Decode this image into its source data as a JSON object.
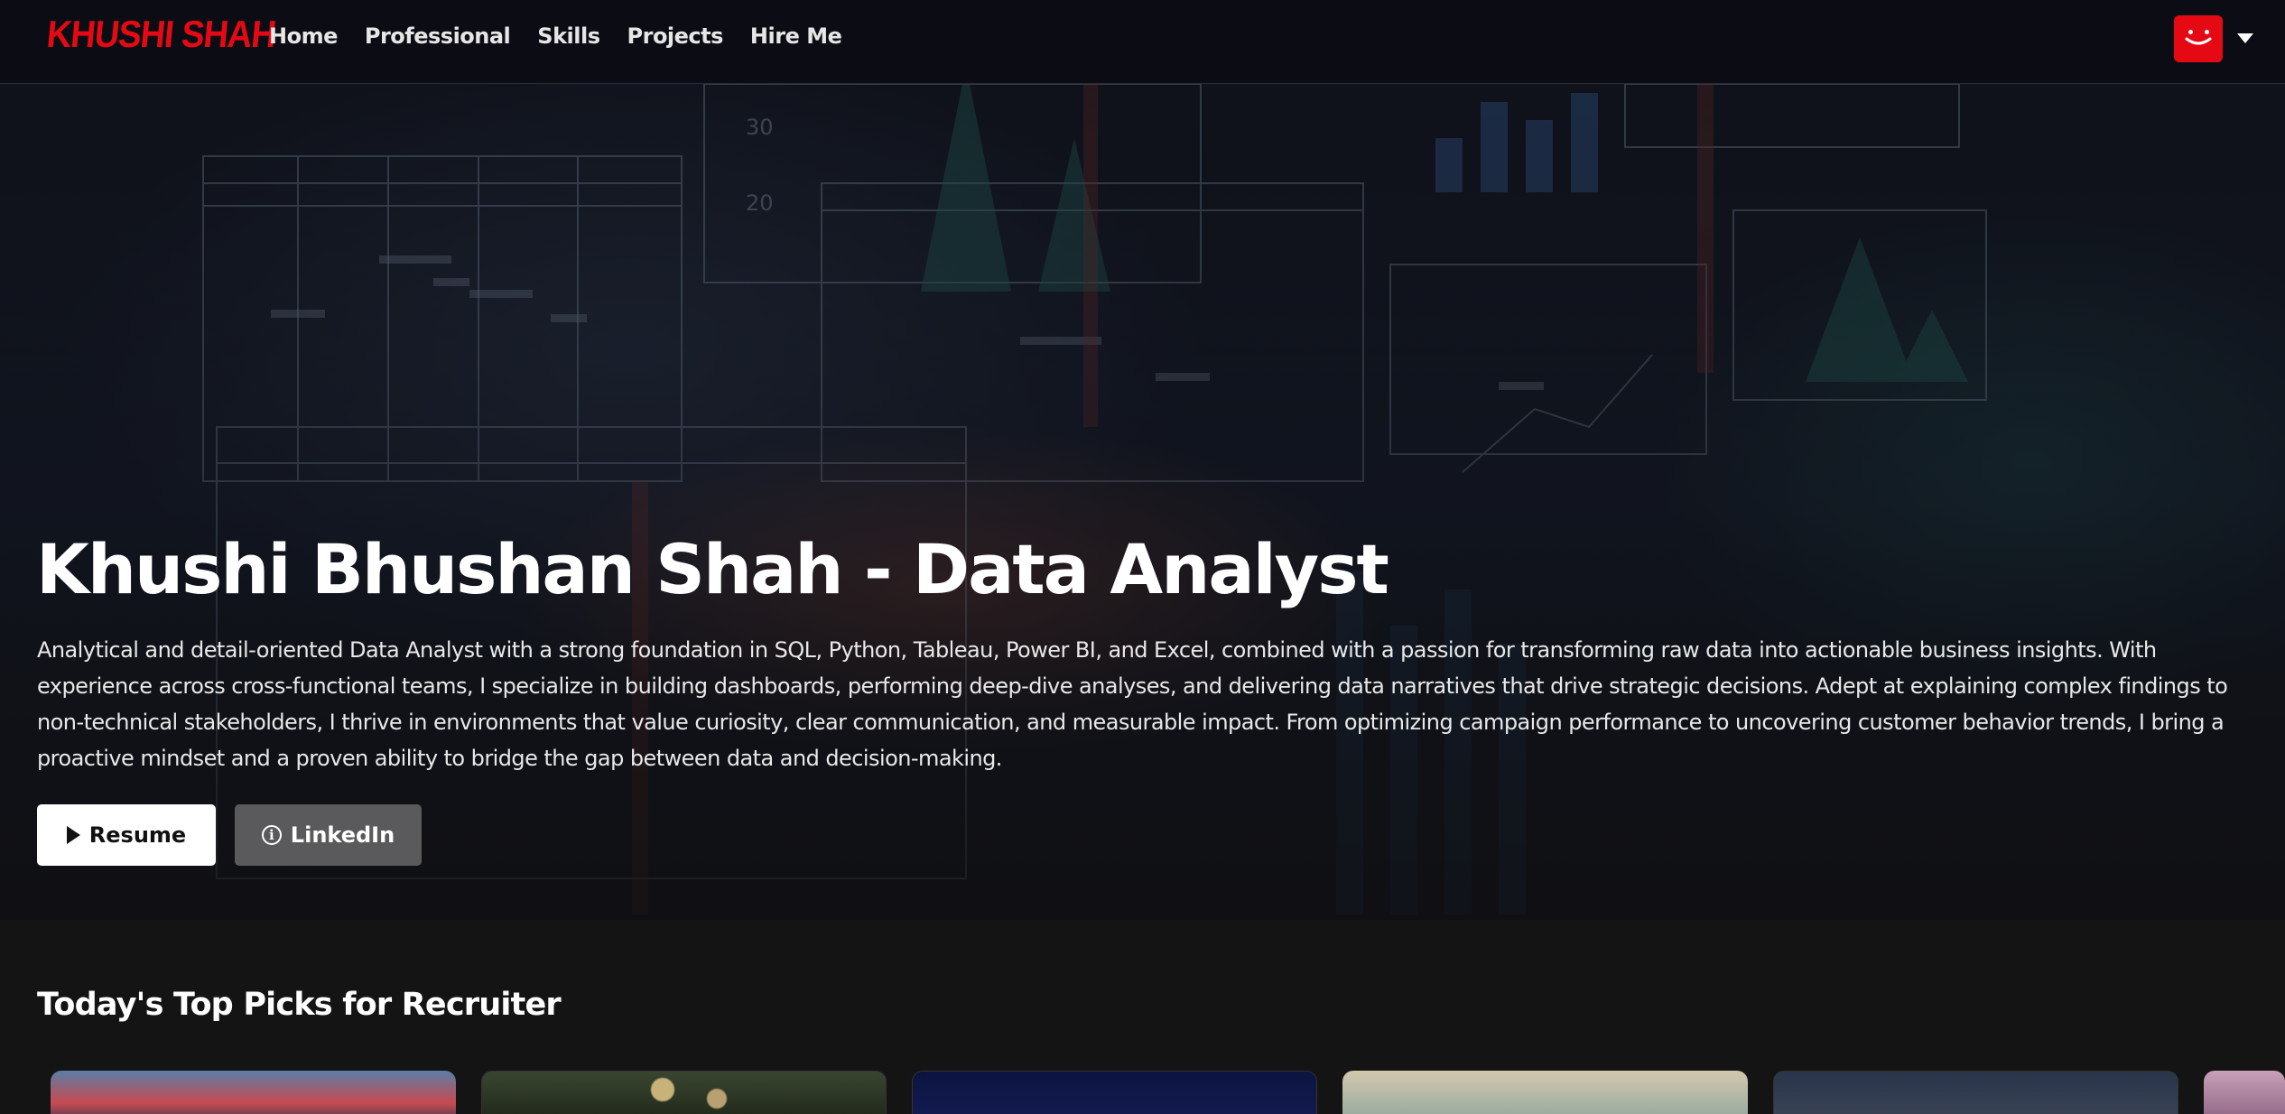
{
  "brand": {
    "logo_text": "KHUSHI SHAH",
    "accent_color": "#e50914"
  },
  "nav": {
    "links": [
      {
        "label": "Home"
      },
      {
        "label": "Professional"
      },
      {
        "label": "Skills"
      },
      {
        "label": "Projects"
      },
      {
        "label": "Hire Me"
      }
    ],
    "profile_icon": "smiley-avatar-icon",
    "menu_icon": "caret-down-icon"
  },
  "hero": {
    "title": "Khushi Bhushan Shah - Data Analyst",
    "description": "Analytical and detail-oriented Data Analyst with a strong foundation in SQL, Python, Tableau, Power BI, and Excel, combined with a passion for transforming raw data into actionable business insights. With experience across cross-functional teams, I specialize in building dashboards, performing deep-dive analyses, and delivering data narratives that drive strategic decisions. Adept at explaining complex findings to non-technical stakeholders, I thrive in environments that value curiosity, clear communication, and measurable impact. From optimizing campaign performance to uncovering customer behavior trends, I bring a proactive mindset and a proven ability to bridge the gap between data and decision-making.",
    "buttons": {
      "resume_label": "Resume",
      "resume_icon": "play-icon",
      "linkedin_label": "LinkedIn",
      "linkedin_icon": "info-icon"
    },
    "background_text": {
      "tick_30": "30",
      "tick_20": "20"
    }
  },
  "row": {
    "title": "Today's Top Picks for Recruiter",
    "cards": [
      {
        "name": "card-1",
        "colors": [
          "#5a7ea6",
          "#c84a50"
        ]
      },
      {
        "name": "card-2",
        "colors": [
          "#2b3522",
          "#9a8a60"
        ]
      },
      {
        "name": "card-3",
        "colors": [
          "#0b1440",
          "#141c52"
        ]
      },
      {
        "name": "card-4",
        "colors": [
          "#c9bfa6",
          "#8fa59c"
        ]
      },
      {
        "name": "card-5",
        "colors": [
          "#1f2a3f",
          "#3b4656"
        ]
      },
      {
        "name": "card-6",
        "colors": [
          "#c8a0b8",
          "#8a6080"
        ]
      }
    ]
  }
}
